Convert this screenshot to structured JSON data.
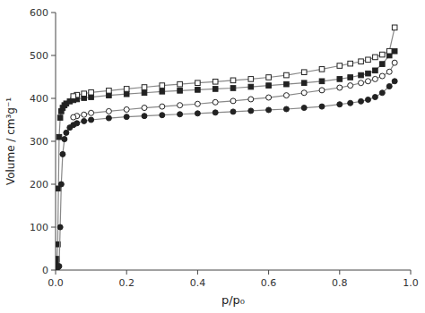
{
  "chart_data": {
    "type": "line",
    "xlabel": "p/p₀",
    "ylabel": "Volume / cm³g⁻¹",
    "xlim": [
      0,
      1.0
    ],
    "ylim": [
      0,
      600
    ],
    "xticks": [
      {
        "value": 0.0,
        "label": "0.0"
      },
      0.2,
      0.4,
      0.6,
      0.8,
      {
        "value": 1.0,
        "label": "1.0"
      }
    ],
    "yticks": [
      0,
      100,
      200,
      300,
      400,
      500,
      600
    ],
    "grid": false,
    "series": [
      {
        "color": "#888888",
        "marker": "square",
        "line_style": "solid",
        "x": [
          0.0005,
          0.001,
          0.002,
          0.004,
          0.006,
          0.008,
          0.01,
          0.013,
          0.016,
          0.02,
          0.025,
          0.03,
          0.04,
          0.05,
          0.06,
          0.08,
          0.1,
          0.15,
          0.2,
          0.25,
          0.3,
          0.35,
          0.4,
          0.45,
          0.5,
          0.55,
          0.6,
          0.65,
          0.7,
          0.75,
          0.8,
          0.83,
          0.86,
          0.88,
          0.9,
          0.92,
          0.94,
          0.955
        ],
        "values": [
          18,
          20,
          22,
          26,
          60,
          190,
          310,
          355,
          370,
          378,
          384,
          388,
          393,
          396,
          398,
          401,
          403,
          407,
          410,
          413,
          416,
          418,
          420,
          422,
          424,
          427,
          430,
          433,
          436,
          440,
          445,
          449,
          454,
          458,
          465,
          480,
          500,
          510
        ]
      },
      {
        "color": "#888888",
        "marker": "square-open",
        "line_style": "solid",
        "x": [
          0.955,
          0.94,
          0.92,
          0.9,
          0.88,
          0.86,
          0.83,
          0.8,
          0.75,
          0.7,
          0.65,
          0.6,
          0.55,
          0.5,
          0.45,
          0.4,
          0.35,
          0.3,
          0.25,
          0.2,
          0.15,
          0.1,
          0.08,
          0.06,
          0.05
        ],
        "values": [
          565,
          510,
          502,
          496,
          490,
          486,
          481,
          476,
          468,
          461,
          454,
          449,
          445,
          442,
          439,
          436,
          433,
          430,
          426,
          422,
          418,
          414,
          411,
          408,
          405
        ]
      },
      {
        "color": "#888888",
        "marker": "circle",
        "line_style": "solid",
        "x": [
          0.0005,
          0.001,
          0.002,
          0.003,
          0.005,
          0.007,
          0.01,
          0.013,
          0.016,
          0.02,
          0.025,
          0.03,
          0.04,
          0.05,
          0.06,
          0.08,
          0.1,
          0.15,
          0.2,
          0.25,
          0.3,
          0.35,
          0.4,
          0.45,
          0.5,
          0.55,
          0.6,
          0.65,
          0.7,
          0.75,
          0.8,
          0.83,
          0.86,
          0.88,
          0.9,
          0.92,
          0.94,
          0.955
        ],
        "values": [
          2,
          3,
          4,
          5,
          6,
          7,
          9,
          100,
          200,
          270,
          305,
          320,
          332,
          338,
          342,
          347,
          350,
          354,
          357,
          359,
          361,
          363,
          365,
          367,
          369,
          371,
          373,
          375,
          378,
          381,
          386,
          389,
          393,
          397,
          403,
          413,
          428,
          440
        ]
      },
      {
        "color": "#888888",
        "marker": "circle-open",
        "line_style": "solid",
        "x": [
          0.955,
          0.94,
          0.92,
          0.9,
          0.88,
          0.86,
          0.83,
          0.8,
          0.75,
          0.7,
          0.65,
          0.6,
          0.55,
          0.5,
          0.45,
          0.4,
          0.35,
          0.3,
          0.25,
          0.2,
          0.15,
          0.1,
          0.08,
          0.06,
          0.05
        ],
        "values": [
          483,
          462,
          452,
          445,
          440,
          436,
          430,
          425,
          419,
          413,
          407,
          402,
          398,
          394,
          391,
          387,
          384,
          381,
          378,
          374,
          370,
          366,
          362,
          359,
          356
        ]
      }
    ]
  }
}
